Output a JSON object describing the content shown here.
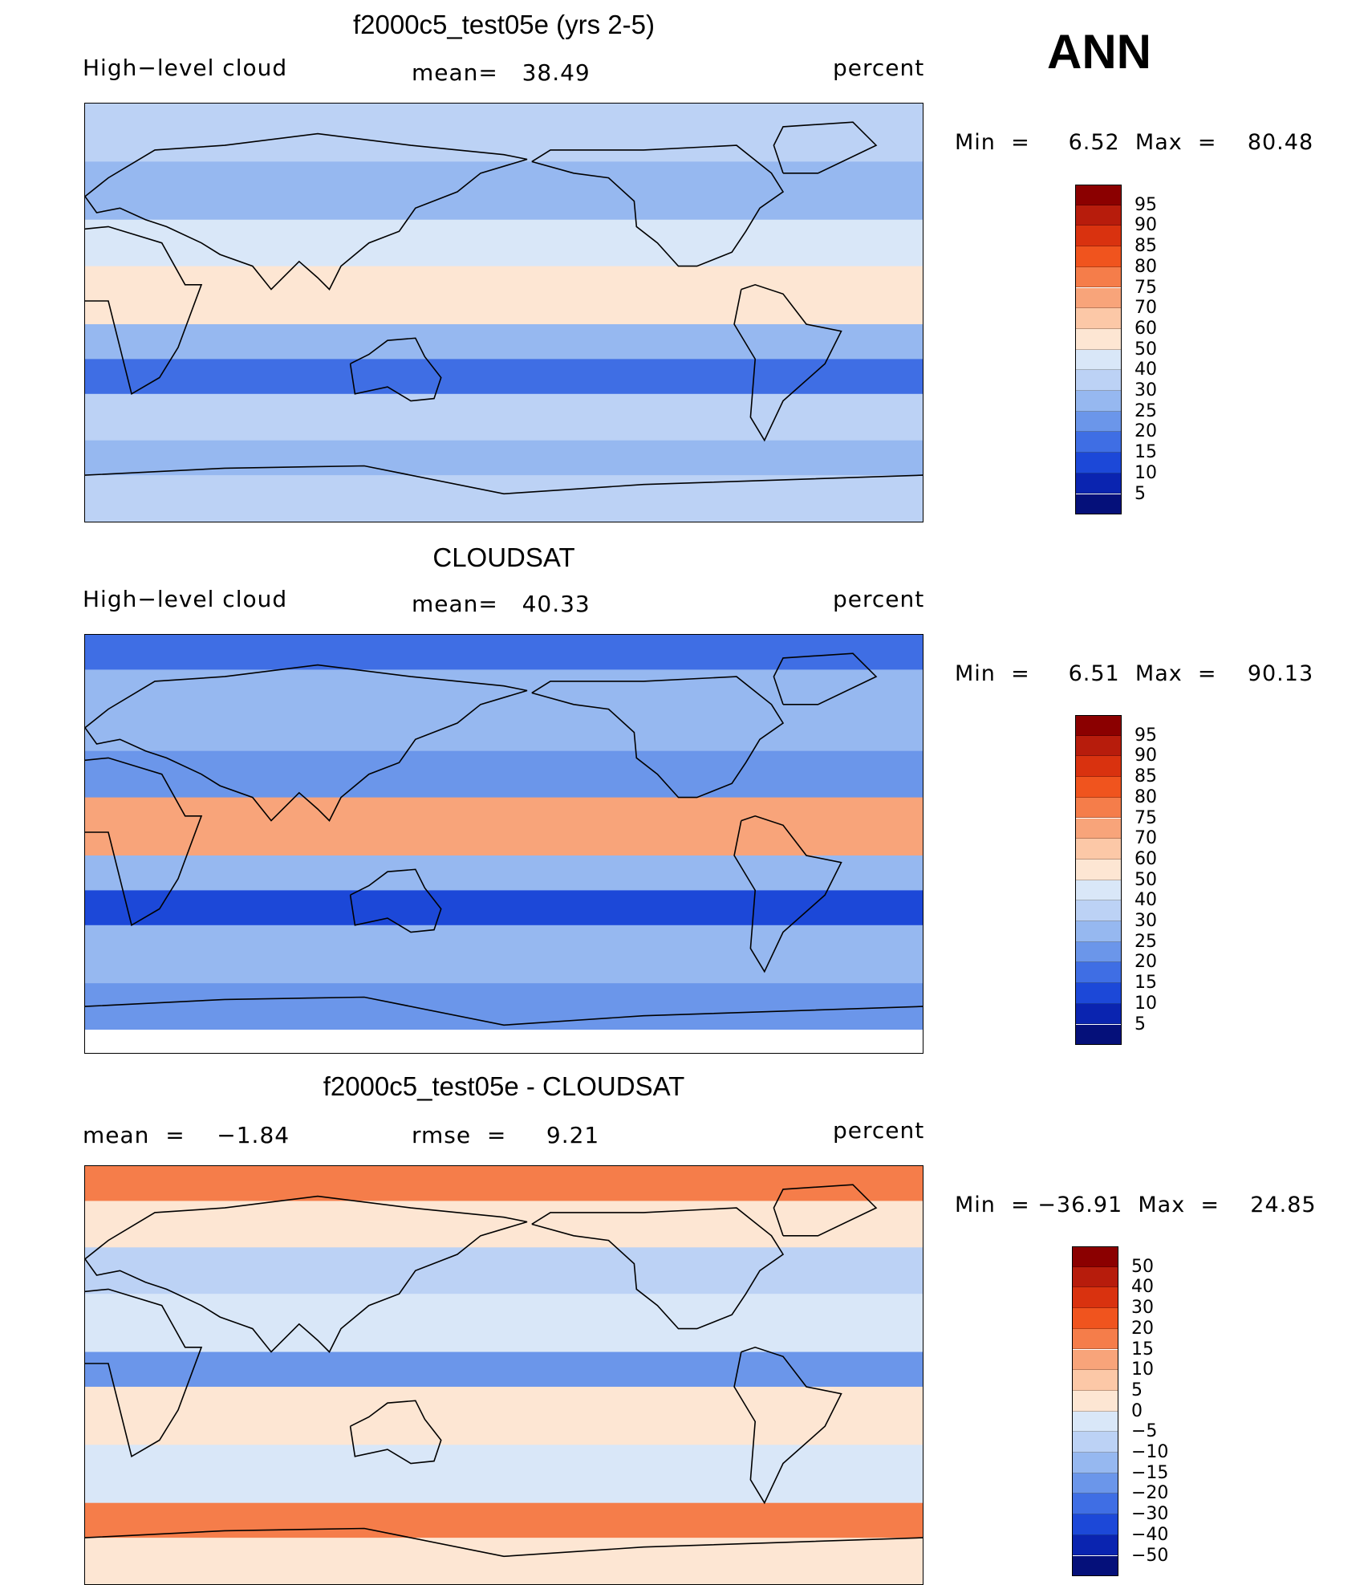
{
  "season": "ANN",
  "panels": [
    {
      "title": "f2000c5_test05e (yrs 2-5)",
      "left_label": "High−level cloud",
      "center_label": "mean=   38.49",
      "right_label": "percent",
      "minmax": "Min  =     6.52  Max  =    80.48",
      "colorbar": {
        "ticks": [
          "95",
          "90",
          "85",
          "80",
          "75",
          "70",
          "60",
          "50",
          "40",
          "30",
          "25",
          "20",
          "15",
          "10",
          "5"
        ],
        "colors": [
          "#8b0000",
          "#b71c0c",
          "#d9320f",
          "#f0541e",
          "#f57d4a",
          "#f8a47a",
          "#fcc8a7",
          "#fde6d3",
          "#d9e7f8",
          "#bcd2f5",
          "#96b8f0",
          "#6b96ea",
          "#3f6ee4",
          "#1c48d8",
          "#0a24b0",
          "#05107a"
        ]
      },
      "zones": [
        {
          "lat": [
            65,
            90
          ],
          "color": "#bcd2f5"
        },
        {
          "lat": [
            40,
            65
          ],
          "color": "#96b8f0"
        },
        {
          "lat": [
            20,
            40
          ],
          "color": "#d9e7f8"
        },
        {
          "lat": [
            -5,
            20
          ],
          "color": "#fde6d3"
        },
        {
          "lat": [
            -20,
            -5
          ],
          "color": "#96b8f0"
        },
        {
          "lat": [
            -35,
            -20
          ],
          "color": "#3f6ee4"
        },
        {
          "lat": [
            -55,
            -35
          ],
          "color": "#bcd2f5"
        },
        {
          "lat": [
            -70,
            -55
          ],
          "color": "#96b8f0"
        },
        {
          "lat": [
            -90,
            -70
          ],
          "color": "#bcd2f5"
        }
      ]
    },
    {
      "title": "CLOUDSAT",
      "left_label": "High−level cloud",
      "center_label": "mean=   40.33",
      "right_label": "percent",
      "minmax": "Min  =     6.51  Max  =    90.13",
      "colorbar": {
        "ticks": [
          "95",
          "90",
          "85",
          "80",
          "75",
          "70",
          "60",
          "50",
          "40",
          "30",
          "25",
          "20",
          "15",
          "10",
          "5"
        ],
        "colors": [
          "#8b0000",
          "#b71c0c",
          "#d9320f",
          "#f0541e",
          "#f57d4a",
          "#f8a47a",
          "#fcc8a7",
          "#fde6d3",
          "#d9e7f8",
          "#bcd2f5",
          "#96b8f0",
          "#6b96ea",
          "#3f6ee4",
          "#1c48d8",
          "#0a24b0",
          "#05107a"
        ]
      },
      "zones": [
        {
          "lat": [
            75,
            90
          ],
          "color": "#3f6ee4"
        },
        {
          "lat": [
            40,
            75
          ],
          "color": "#96b8f0"
        },
        {
          "lat": [
            20,
            40
          ],
          "color": "#6b96ea"
        },
        {
          "lat": [
            -5,
            20
          ],
          "color": "#f8a47a"
        },
        {
          "lat": [
            -20,
            -5
          ],
          "color": "#96b8f0"
        },
        {
          "lat": [
            -35,
            -20
          ],
          "color": "#1c48d8"
        },
        {
          "lat": [
            -60,
            -35
          ],
          "color": "#96b8f0"
        },
        {
          "lat": [
            -80,
            -60
          ],
          "color": "#6b96ea"
        },
        {
          "lat": [
            -90,
            -80
          ],
          "color": "#ffffff"
        }
      ]
    },
    {
      "title": "f2000c5_test05e - CLOUDSAT",
      "left_label": "mean  =    −1.84",
      "center_label": "rmse  =     9.21",
      "right_label": "percent",
      "minmax": "Min  = −36.91  Max  =    24.85",
      "colorbar": {
        "ticks": [
          "50",
          "40",
          "30",
          "20",
          "15",
          "10",
          "5",
          "0",
          "−5",
          "−10",
          "−15",
          "−20",
          "−30",
          "−40",
          "−50"
        ],
        "colors": [
          "#8b0000",
          "#b71c0c",
          "#d9320f",
          "#f0541e",
          "#f57d4a",
          "#f8a47a",
          "#fcc8a7",
          "#fde6d3",
          "#d9e7f8",
          "#bcd2f5",
          "#96b8f0",
          "#6b96ea",
          "#3f6ee4",
          "#1c48d8",
          "#0a24b0",
          "#05107a"
        ]
      },
      "zones": [
        {
          "lat": [
            75,
            90
          ],
          "color": "#f57d4a"
        },
        {
          "lat": [
            55,
            75
          ],
          "color": "#fde6d3"
        },
        {
          "lat": [
            35,
            55
          ],
          "color": "#bcd2f5"
        },
        {
          "lat": [
            10,
            35
          ],
          "color": "#d9e7f8"
        },
        {
          "lat": [
            -5,
            10
          ],
          "color": "#6b96ea"
        },
        {
          "lat": [
            -30,
            -5
          ],
          "color": "#fde6d3"
        },
        {
          "lat": [
            -55,
            -30
          ],
          "color": "#d9e7f8"
        },
        {
          "lat": [
            -70,
            -55
          ],
          "color": "#f57d4a"
        },
        {
          "lat": [
            -90,
            -70
          ],
          "color": "#fde6d3"
        }
      ]
    }
  ]
}
